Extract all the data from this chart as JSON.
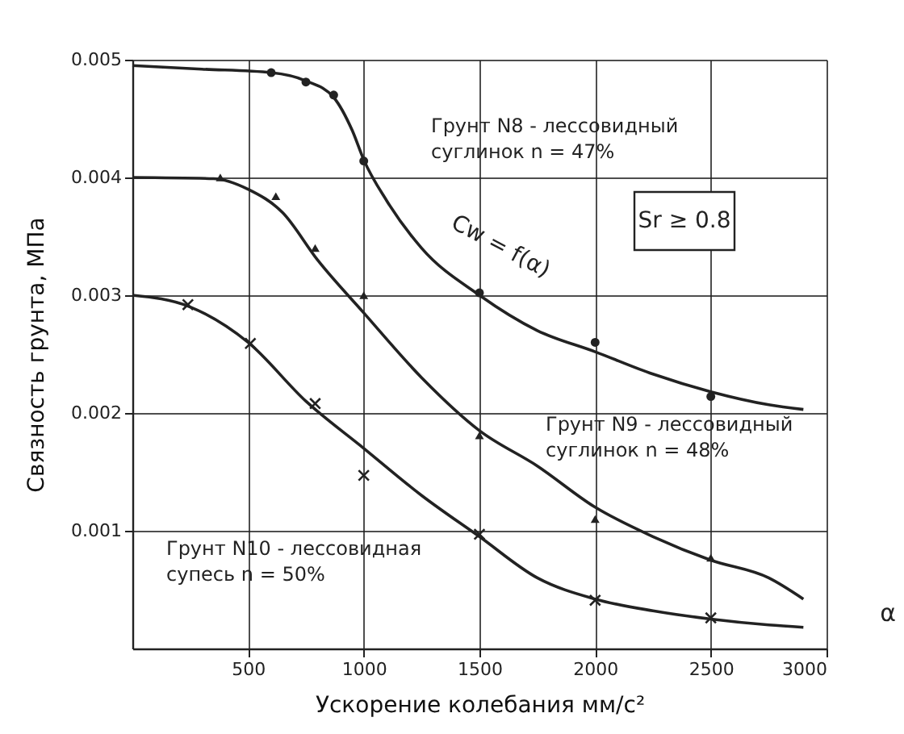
{
  "chart_data": {
    "type": "line",
    "xlabel": "Ускорение колебания мм/с²",
    "ylabel": "Связность грунта, МПа",
    "xlim": [
      0,
      3000
    ],
    "ylim": [
      0,
      0.005
    ],
    "xticks": [
      500,
      1000,
      1500,
      2000,
      2500,
      3000
    ],
    "yticks": [
      0.001,
      0.002,
      0.003,
      0.004,
      0.005
    ],
    "grid": true,
    "series": [
      {
        "type": "line",
        "name": "Грунт N8 - лессовидный\nсуглинок  n = 47%",
        "color": "#222222",
        "marker": "none",
        "x": [
          0,
          300,
          600,
          750,
          870,
          950,
          1000,
          1100,
          1250,
          1500,
          1750,
          2000,
          2250,
          2500,
          2750,
          2900
        ],
        "values": [
          0.00495,
          0.00492,
          0.00489,
          0.00482,
          0.00468,
          0.0044,
          0.00415,
          0.0038,
          0.0034,
          0.003,
          0.0027,
          0.00252,
          0.00233,
          0.00218,
          0.00207,
          0.00203
        ]
      },
      {
        "type": "scatter",
        "color": "#222222",
        "marker": "circle",
        "x": [
          600,
          750,
          870,
          1000,
          1500,
          2000,
          2500
        ],
        "values": [
          0.00489,
          0.00481,
          0.0047,
          0.00414,
          0.00302,
          0.0026,
          0.00214
        ]
      },
      {
        "type": "line",
        "name": "Грунт N9 - лессовидный\nсуглинок  n = 48%",
        "color": "#222222",
        "marker": "none",
        "x": [
          0,
          350,
          500,
          650,
          800,
          1000,
          1250,
          1500,
          1750,
          2000,
          2250,
          2500,
          2750,
          2900
        ],
        "values": [
          0.004,
          0.00399,
          0.0039,
          0.0037,
          0.0033,
          0.00285,
          0.0023,
          0.00185,
          0.00155,
          0.0012,
          0.00095,
          0.00075,
          0.0006,
          0.00042
        ]
      },
      {
        "type": "scatter",
        "color": "#222222",
        "marker": "triangle",
        "x": [
          380,
          620,
          790,
          1000,
          1500,
          2000,
          2500
        ],
        "values": [
          0.004,
          0.00384,
          0.0034,
          0.003,
          0.00181,
          0.0011,
          0.00077
        ]
      },
      {
        "type": "line",
        "name": "Грунт N10 - лессовидная\nсупесь   n = 50%",
        "color": "#222222",
        "marker": "none",
        "x": [
          0,
          250,
          500,
          750,
          1000,
          1250,
          1500,
          1750,
          2000,
          2250,
          2500,
          2750,
          2900
        ],
        "values": [
          0.003,
          0.0029,
          0.0026,
          0.0021,
          0.0017,
          0.0013,
          0.00095,
          0.0006,
          0.00042,
          0.00032,
          0.00025,
          0.0002,
          0.00018
        ]
      },
      {
        "type": "scatter",
        "color": "#222222",
        "marker": "cross",
        "x": [
          240,
          510,
          790,
          1000,
          1500,
          2000,
          2500
        ],
        "values": [
          0.00292,
          0.00259,
          0.00208,
          0.00147,
          0.00097,
          0.00041,
          0.00026
        ]
      }
    ],
    "annotations": [
      "Cw = f(α)",
      "Sr ≥ 0.8",
      "α"
    ]
  }
}
